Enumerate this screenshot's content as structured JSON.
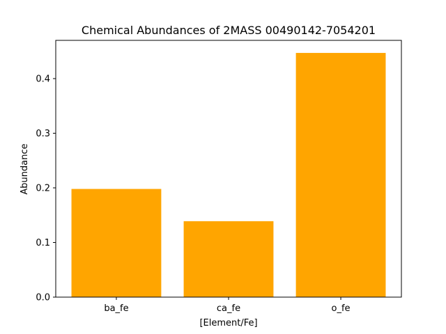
{
  "chart_data": {
    "type": "bar",
    "title": "Chemical Abundances of 2MASS 00490142-7054201",
    "xlabel": "[Element/Fe]",
    "ylabel": "Abundance",
    "categories": [
      "ba_fe",
      "ca_fe",
      "o_fe"
    ],
    "values": [
      0.198,
      0.139,
      0.447
    ],
    "ylim": [
      0,
      0.47
    ],
    "yticks": [
      0.0,
      0.1,
      0.2,
      0.3,
      0.4
    ],
    "ytick_labels": [
      "0.0",
      "0.1",
      "0.2",
      "0.3",
      "0.4"
    ],
    "bar_color": "#FFA500",
    "grid": false,
    "legend": false
  }
}
